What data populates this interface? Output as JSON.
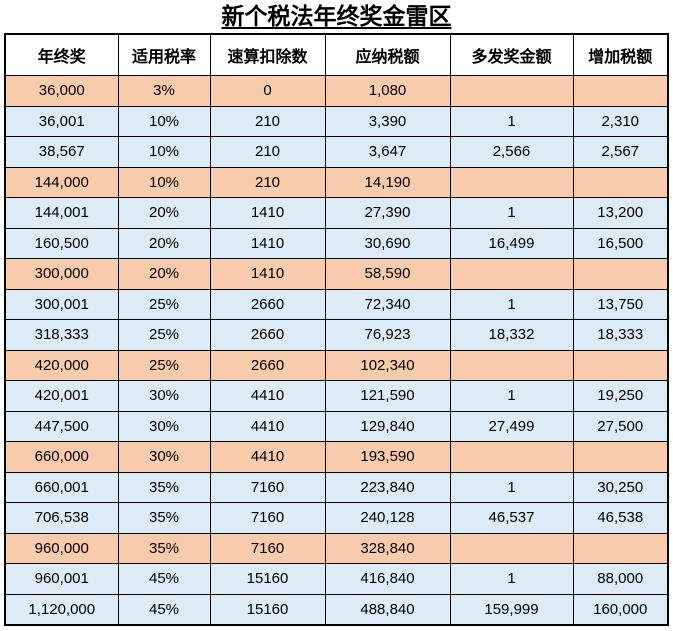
{
  "chart_data": {
    "type": "table",
    "title": "新个税法年终奖金雷区",
    "columns": [
      "年终奖",
      "适用税率",
      "速算扣除数",
      "应纳税额",
      "多发奖金额",
      "增加税额"
    ],
    "rows": [
      [
        "36,000",
        "3%",
        "0",
        "1,080",
        "",
        ""
      ],
      [
        "36,001",
        "10%",
        "210",
        "3,390",
        "1",
        "2,310"
      ],
      [
        "38,567",
        "10%",
        "210",
        "3,647",
        "2,566",
        "2,567"
      ],
      [
        "144,000",
        "10%",
        "210",
        "14,190",
        "",
        ""
      ],
      [
        "144,001",
        "20%",
        "1410",
        "27,390",
        "1",
        "13,200"
      ],
      [
        "160,500",
        "20%",
        "1410",
        "30,690",
        "16,499",
        "16,500"
      ],
      [
        "300,000",
        "20%",
        "1410",
        "58,590",
        "",
        ""
      ],
      [
        "300,001",
        "25%",
        "2660",
        "72,340",
        "1",
        "13,750"
      ],
      [
        "318,333",
        "25%",
        "2660",
        "76,923",
        "18,332",
        "18,333"
      ],
      [
        "420,000",
        "25%",
        "2660",
        "102,340",
        "",
        ""
      ],
      [
        "420,001",
        "30%",
        "4410",
        "121,590",
        "1",
        "19,250"
      ],
      [
        "447,500",
        "30%",
        "4410",
        "129,840",
        "27,499",
        "27,500"
      ],
      [
        "660,000",
        "30%",
        "4410",
        "193,590",
        "",
        ""
      ],
      [
        "660,001",
        "35%",
        "7160",
        "223,840",
        "1",
        "30,250"
      ],
      [
        "706,538",
        "35%",
        "7160",
        "240,128",
        "46,537",
        "46,538"
      ],
      [
        "960,000",
        "35%",
        "7160",
        "328,840",
        "",
        ""
      ],
      [
        "960,001",
        "45%",
        "15160",
        "416,840",
        "1",
        "88,000"
      ],
      [
        "1,120,000",
        "45%",
        "15160",
        "488,840",
        "159,999",
        "160,000"
      ]
    ],
    "highlighted_rows": [
      0,
      3,
      6,
      9,
      12,
      15
    ]
  },
  "colors": {
    "highlighted_row": "#F8CBAD",
    "normal_row": "#DDEBF7",
    "header_row": "#FFFFFF",
    "border": "#000000",
    "text": "#000000"
  }
}
